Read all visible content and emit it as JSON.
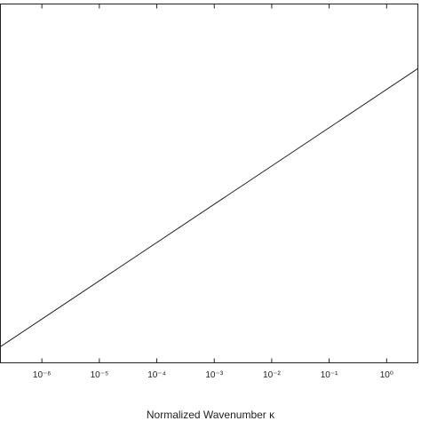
{
  "chart_data": {
    "type": "line",
    "x_label": "Normalized Wavenumber κ",
    "log_x": true,
    "x": [
      1.9e-07,
      3.5
    ],
    "series": [
      {
        "color": "#222222",
        "values": [
          0.045,
          0.82
        ]
      }
    ],
    "xlim": [
      1.9e-07,
      3.5
    ],
    "ylim": [
      0,
      1
    ],
    "xticks": [
      {
        "value": 1e-06,
        "label": "10⁻⁶"
      },
      {
        "value": 1e-05,
        "label": "10⁻⁵"
      },
      {
        "value": 0.0001,
        "label": "10⁻⁴"
      },
      {
        "value": 0.001,
        "label": "10⁻³"
      },
      {
        "value": 0.01,
        "label": "10⁻²"
      },
      {
        "value": 0.1,
        "label": "10⁻¹"
      },
      {
        "value": 1,
        "label": "10⁰"
      }
    ]
  }
}
